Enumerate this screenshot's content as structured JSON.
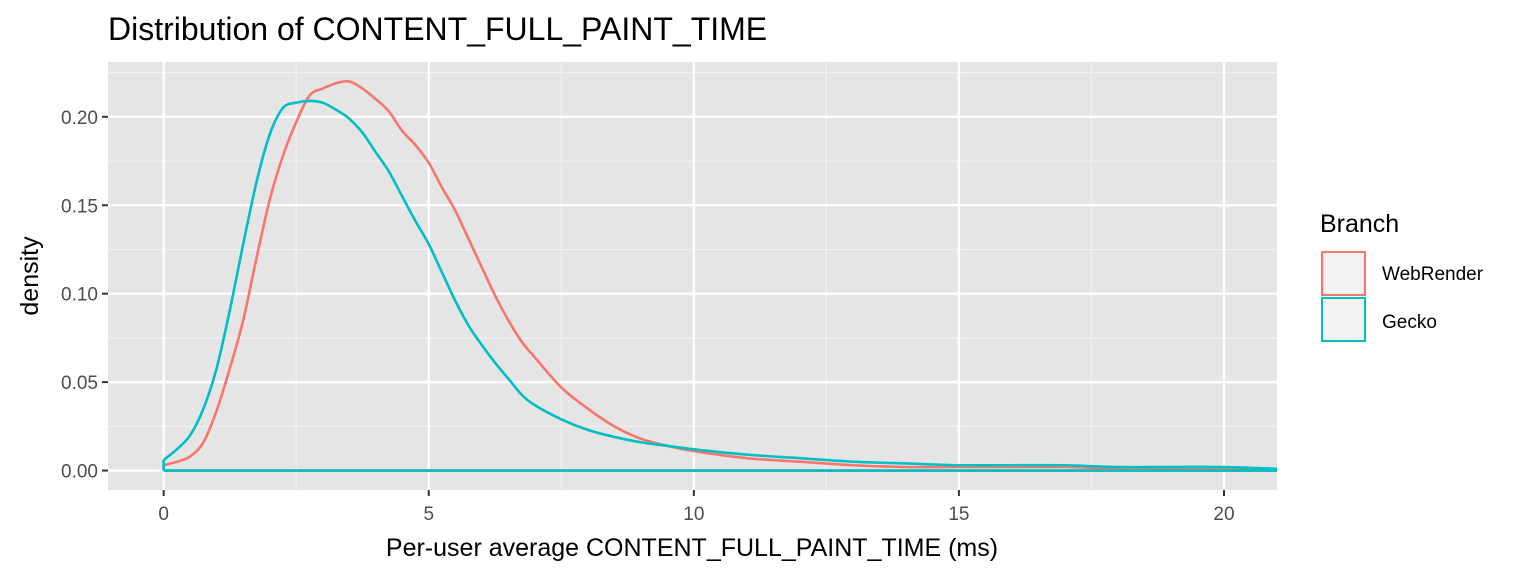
{
  "chart_data": {
    "type": "line",
    "title": "Distribution of CONTENT_FULL_PAINT_TIME",
    "xlabel": "Per-user average CONTENT_FULL_PAINT_TIME (ms)",
    "ylabel": "density",
    "xlim": [
      -1.05,
      21.0
    ],
    "ylim": [
      -0.011,
      0.231
    ],
    "x_ticks": [
      0,
      5,
      10,
      15,
      20
    ],
    "x_tick_labels": [
      "0",
      "5",
      "10",
      "15",
      "20"
    ],
    "y_ticks": [
      0.0,
      0.05,
      0.1,
      0.15,
      0.2
    ],
    "y_tick_labels": [
      "0.00",
      "0.05",
      "0.10",
      "0.15",
      "0.20"
    ],
    "grid": true,
    "panel_background": "#e5e5e5",
    "legend": {
      "title": "Branch",
      "position": "right",
      "entries": [
        "WebRender",
        "Gecko"
      ]
    },
    "series": [
      {
        "name": "WebRender",
        "color": "#f8766d",
        "x": [
          0,
          0.25,
          0.5,
          0.75,
          1.0,
          1.25,
          1.5,
          1.75,
          2.0,
          2.25,
          2.5,
          2.75,
          3.0,
          3.25,
          3.5,
          3.75,
          4.0,
          4.25,
          4.5,
          4.75,
          5.0,
          5.25,
          5.5,
          5.75,
          6.0,
          6.25,
          6.5,
          6.75,
          7.0,
          7.5,
          8.0,
          8.5,
          9.0,
          9.5,
          10.0,
          11.0,
          12.0,
          13.0,
          14.0,
          15.0,
          16.0,
          17.0,
          18.0,
          19.0,
          20.0,
          21.0
        ],
        "y": [
          0.003,
          0.005,
          0.008,
          0.016,
          0.034,
          0.058,
          0.085,
          0.12,
          0.153,
          0.178,
          0.197,
          0.212,
          0.216,
          0.219,
          0.22,
          0.216,
          0.21,
          0.203,
          0.192,
          0.184,
          0.174,
          0.16,
          0.147,
          0.131,
          0.115,
          0.099,
          0.085,
          0.073,
          0.064,
          0.047,
          0.035,
          0.025,
          0.018,
          0.014,
          0.011,
          0.007,
          0.005,
          0.003,
          0.002,
          0.002,
          0.002,
          0.002,
          0.001,
          0.001,
          0.001,
          0.001
        ],
        "baseline": 0
      },
      {
        "name": "Gecko",
        "color": "#00bfc4",
        "x": [
          0,
          0.25,
          0.5,
          0.75,
          1.0,
          1.25,
          1.5,
          1.75,
          2.0,
          2.25,
          2.5,
          2.75,
          3.0,
          3.25,
          3.5,
          3.75,
          4.0,
          4.25,
          4.5,
          4.75,
          5.0,
          5.25,
          5.5,
          5.75,
          6.0,
          6.25,
          6.5,
          6.75,
          7.0,
          7.5,
          8.0,
          8.5,
          9.0,
          9.5,
          10.0,
          11.0,
          12.0,
          13.0,
          14.0,
          15.0,
          16.0,
          17.0,
          18.0,
          19.0,
          20.0,
          21.0
        ],
        "y": [
          0.006,
          0.012,
          0.02,
          0.035,
          0.058,
          0.091,
          0.128,
          0.163,
          0.19,
          0.205,
          0.208,
          0.209,
          0.208,
          0.204,
          0.199,
          0.191,
          0.18,
          0.169,
          0.155,
          0.141,
          0.128,
          0.112,
          0.096,
          0.082,
          0.071,
          0.061,
          0.052,
          0.043,
          0.037,
          0.029,
          0.023,
          0.019,
          0.016,
          0.014,
          0.012,
          0.009,
          0.007,
          0.005,
          0.004,
          0.003,
          0.003,
          0.003,
          0.002,
          0.002,
          0.002,
          0.001
        ],
        "baseline": 0
      }
    ]
  }
}
